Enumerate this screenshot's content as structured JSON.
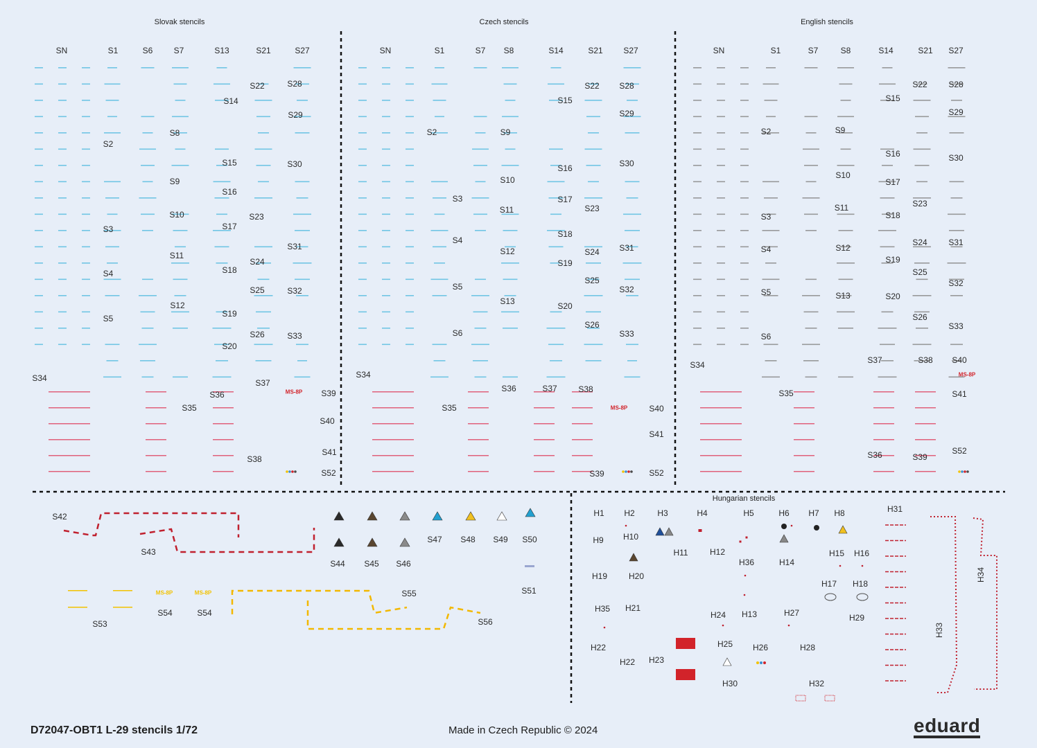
{
  "sections": [
    {
      "title": "Slovak stencils",
      "labels": [
        "SN",
        "S1",
        "S6",
        "S7",
        "S13",
        "S21",
        "S27",
        "S22",
        "S28",
        "S14",
        "S29",
        "S8",
        "S2",
        "S15",
        "S30",
        "S9",
        "S16",
        "S10",
        "S23",
        "S17",
        "S3",
        "S31",
        "S11",
        "S24",
        "S18",
        "S4",
        "S25",
        "S32",
        "S12",
        "S19",
        "S5",
        "S26",
        "S33",
        "S20",
        "S34",
        "S37",
        "S36",
        "S39",
        "S35",
        "S40",
        "S38",
        "S41",
        "S52"
      ],
      "badge": "MS-8P"
    },
    {
      "title": "Czech stencils",
      "labels": [
        "SN",
        "S1",
        "S7",
        "S8",
        "S14",
        "S21",
        "S27",
        "S22",
        "S28",
        "S15",
        "S29",
        "S2",
        "S9",
        "S16",
        "S30",
        "S10",
        "S3",
        "S17",
        "S23",
        "S11",
        "S4",
        "S18",
        "S31",
        "S12",
        "S24",
        "S19",
        "S5",
        "S25",
        "S32",
        "S13",
        "S20",
        "S26",
        "S6",
        "S33",
        "S34",
        "S36",
        "S37",
        "S38",
        "S35",
        "S40",
        "S41",
        "S39",
        "S52"
      ],
      "badge": "MS-8P"
    },
    {
      "title": "English stencils",
      "labels": [
        "SN",
        "S1",
        "S7",
        "S8",
        "S14",
        "S21",
        "S27",
        "S22",
        "S28",
        "S15",
        "S29",
        "S2",
        "S9",
        "S16",
        "S30",
        "S10",
        "S17",
        "S23",
        "S11",
        "S18",
        "S3",
        "S24",
        "S31",
        "S12",
        "S4",
        "S19",
        "S25",
        "S32",
        "S5",
        "S13",
        "S20",
        "S26",
        "S33",
        "S6",
        "S34",
        "S37",
        "S38",
        "S40",
        "S35",
        "S41",
        "S36",
        "S39",
        "S52"
      ],
      "badge": "MS-8P"
    }
  ],
  "misc": {
    "labels": [
      "S42",
      "S43",
      "S44",
      "S45",
      "S46",
      "S47",
      "S48",
      "S49",
      "S50",
      "S51",
      "S55",
      "S53",
      "S54",
      "S54",
      "S56"
    ],
    "yellow_badges": [
      "MS-8P",
      "MS-8P"
    ]
  },
  "hungarian": {
    "title": "Hungarian stencils",
    "labels": [
      "H1",
      "H2",
      "H3",
      "H4",
      "H5",
      "H6",
      "H7",
      "H8",
      "H31",
      "H9",
      "H10",
      "H11",
      "H12",
      "H36",
      "H14",
      "H15",
      "H16",
      "H19",
      "H20",
      "H17",
      "H18",
      "H35",
      "H21",
      "H24",
      "H13",
      "H27",
      "H29",
      "H22",
      "H25",
      "H26",
      "H28",
      "H22",
      "H23",
      "H30",
      "H32",
      "H33",
      "H34"
    ]
  },
  "footer": {
    "code": "D72047-OBT1 L-29 stencils 1/72",
    "made_in": "Made in Czech Republic ©  2024",
    "logo": "eduard"
  },
  "colors": {
    "background": "#e7eef8",
    "stencil_blue": "#5bbde0",
    "stencil_red": "#d2232a",
    "stencil_yellow": "#f2c200",
    "english_gray": "#7a7a7a"
  }
}
